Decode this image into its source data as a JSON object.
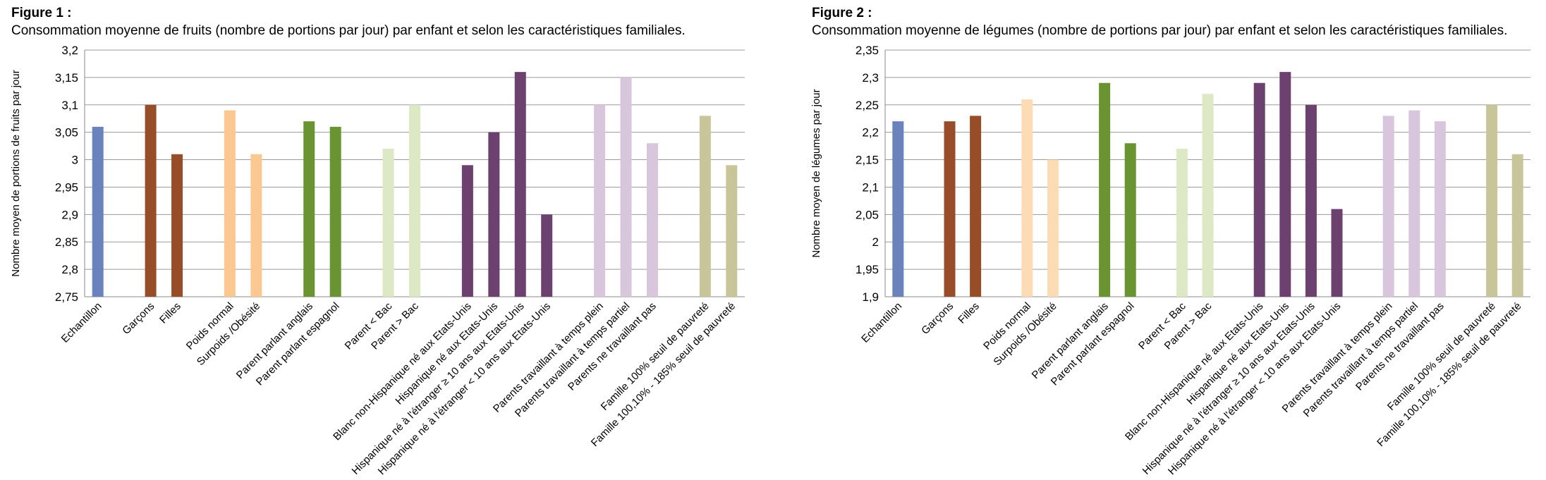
{
  "figures": [
    {
      "label": "Figure 1 :",
      "title": "Consommation moyenne de fruits (nombre de portions par jour) par enfant et selon les caractéristiques familiales.",
      "chart_data": {
        "type": "bar",
        "ylabel": "Nombre moyen de portions de fruits par jour",
        "xlabel": "",
        "ylim": [
          2.75,
          3.2
        ],
        "yticks": [
          "2,75",
          "2,8",
          "2,85",
          "2,9",
          "2,95",
          "3",
          "3,05",
          "3,1",
          "3,15",
          "3,2"
        ],
        "grid": true,
        "categories": [
          "Echantillon",
          "",
          "Garçons",
          "Filles",
          "",
          "Poids normal",
          "Surpoids /Obésité",
          "",
          "Parent parlant anglais",
          "Parent parlant espagnol",
          "",
          "Parent < Bac",
          "Parent > Bac",
          "",
          "Blanc non-Hispanique né aux Etats-Unis",
          "Hispanique né aux Etats-Unis",
          "Hispanique né à l'étranger ≥ 10 ans aux Etats-Unis",
          "Hispanique né à l'étranger < 10 ans aux Etats-Unis",
          "",
          "Parents travaillant à temps plein",
          "Parents travaillant à temps partiel",
          "Parents ne travaillant pas",
          "",
          "Famille 100% seuil de pauvreté",
          "Famille 100,10% - 185% seuil de pauvreté"
        ],
        "values": [
          3.06,
          null,
          3.1,
          3.01,
          null,
          3.09,
          3.01,
          null,
          3.07,
          3.06,
          null,
          3.02,
          3.1,
          null,
          2.99,
          3.05,
          3.16,
          2.9,
          null,
          3.1,
          3.15,
          3.03,
          null,
          3.08,
          2.99
        ],
        "colors": [
          "#6a83bd",
          null,
          "#974d27",
          "#974d27",
          null,
          "#fbc892",
          "#fbc892",
          null,
          "#6a9432",
          "#6a9432",
          null,
          "#dde8c5",
          "#dde8c5",
          null,
          "#6c416f",
          "#6c416f",
          "#6c416f",
          "#6c416f",
          null,
          "#d8c6dd",
          "#d8c6dd",
          "#d8c6dd",
          null,
          "#c9c59b",
          "#c9c59b"
        ]
      }
    },
    {
      "label": "Figure 2 :",
      "title": "Consommation moyenne de légumes (nombre de portions par jour) par enfant et selon les caractéristiques familiales.",
      "chart_data": {
        "type": "bar",
        "ylabel": "Nombre moyen de légumes par jour",
        "xlabel": "",
        "ylim": [
          1.9,
          2.35
        ],
        "yticks": [
          "1,9",
          "1,95",
          "2",
          "2,05",
          "2,1",
          "2,15",
          "2,2",
          "2,25",
          "2,3",
          "2,35"
        ],
        "grid": true,
        "categories": [
          "Echantillon",
          "",
          "Garçons",
          "Filles",
          "",
          "Poids normal",
          "Surpoids /Obésité",
          "",
          "Parent parlant anglais",
          "Parent parlant espagnol",
          "",
          "Parent < Bac",
          "Parent > Bac",
          "",
          "Blanc non-Hispanique né aux Etats-Unis",
          "Hispanique né aux Etats-Unis",
          "Hispanique né à l'étranger ≥ 10 ans aux Etats-Unis",
          "Hispanique né à l'étranger < 10 ans aux Etats-Unis",
          "",
          "Parents travaillant à temps plein",
          "Parents travaillant à temps partiel",
          "Parents ne travaillant pas",
          "",
          "Famille 100% seuil de pauvreté",
          "Famille 100,10% - 185% seuil de pauvreté"
        ],
        "values": [
          2.22,
          null,
          2.22,
          2.23,
          null,
          2.26,
          2.15,
          null,
          2.29,
          2.18,
          null,
          2.17,
          2.27,
          null,
          2.29,
          2.31,
          2.25,
          2.06,
          null,
          2.23,
          2.24,
          2.22,
          null,
          2.25,
          2.16
        ],
        "colors": [
          "#6a83bd",
          null,
          "#974d27",
          "#974d27",
          null,
          "#fbdcb4",
          "#fbdcb4",
          null,
          "#6a9432",
          "#6a9432",
          null,
          "#dde8c5",
          "#dde8c5",
          null,
          "#6c416f",
          "#6c416f",
          "#6c416f",
          "#6c416f",
          null,
          "#d8c6dd",
          "#d8c6dd",
          "#d8c6dd",
          null,
          "#c9c59b",
          "#c9c59b"
        ]
      }
    }
  ]
}
